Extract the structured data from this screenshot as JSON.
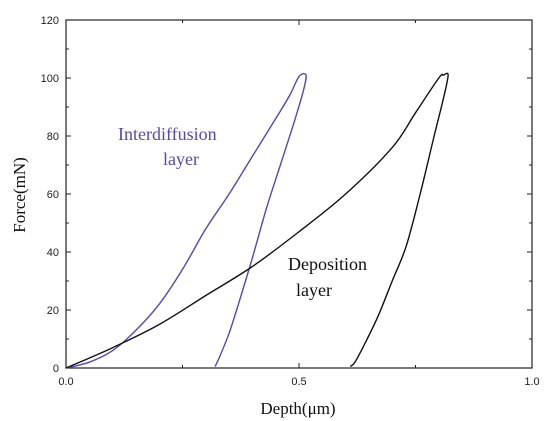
{
  "chart_data": {
    "type": "line",
    "xlabel": "Depth(μm)",
    "ylabel": "Force(mN)",
    "xlim": [
      0.0,
      1.0
    ],
    "ylim": [
      0,
      120
    ],
    "x_ticks": [
      0.0,
      0.5,
      1.0
    ],
    "x_tick_labels": [
      "0.0",
      "0.5",
      "1.0"
    ],
    "y_ticks": [
      0,
      20,
      40,
      60,
      80,
      100,
      120
    ],
    "y_tick_labels": [
      "0",
      "20",
      "40",
      "60",
      "80",
      "100",
      "120"
    ],
    "grid": false,
    "legend": "none",
    "series": [
      {
        "color": "#5548b0",
        "points": [
          [
            0.0,
            0
          ],
          [
            0.05,
            2
          ],
          [
            0.1,
            6
          ],
          [
            0.15,
            13
          ],
          [
            0.2,
            22
          ],
          [
            0.25,
            34
          ],
          [
            0.3,
            48
          ],
          [
            0.35,
            60
          ],
          [
            0.4,
            73
          ],
          [
            0.45,
            86
          ],
          [
            0.48,
            94
          ],
          [
            0.5,
            100.5
          ],
          [
            0.515,
            101
          ],
          [
            0.51,
            96
          ],
          [
            0.49,
            85
          ],
          [
            0.46,
            70
          ],
          [
            0.43,
            55
          ],
          [
            0.4,
            38
          ],
          [
            0.37,
            22
          ],
          [
            0.35,
            12
          ],
          [
            0.33,
            4
          ],
          [
            0.32,
            0.5
          ]
        ]
      },
      {
        "color": "#111111",
        "points": [
          [
            0.0,
            0
          ],
          [
            0.1,
            7
          ],
          [
            0.2,
            15
          ],
          [
            0.3,
            25
          ],
          [
            0.4,
            35
          ],
          [
            0.5,
            47
          ],
          [
            0.6,
            60
          ],
          [
            0.7,
            76
          ],
          [
            0.75,
            88
          ],
          [
            0.8,
            100
          ],
          [
            0.81,
            101
          ],
          [
            0.82,
            101
          ],
          [
            0.81,
            93
          ],
          [
            0.79,
            80
          ],
          [
            0.76,
            60
          ],
          [
            0.73,
            42
          ],
          [
            0.7,
            30
          ],
          [
            0.67,
            18
          ],
          [
            0.64,
            8
          ],
          [
            0.62,
            2
          ],
          [
            0.61,
            0.5
          ]
        ]
      }
    ],
    "annotations": [
      {
        "lines": [
          "Interdiffusion",
          "layer"
        ],
        "color": "#5548b0"
      },
      {
        "lines": [
          "Deposition",
          "layer"
        ],
        "color": "#111111"
      }
    ]
  }
}
